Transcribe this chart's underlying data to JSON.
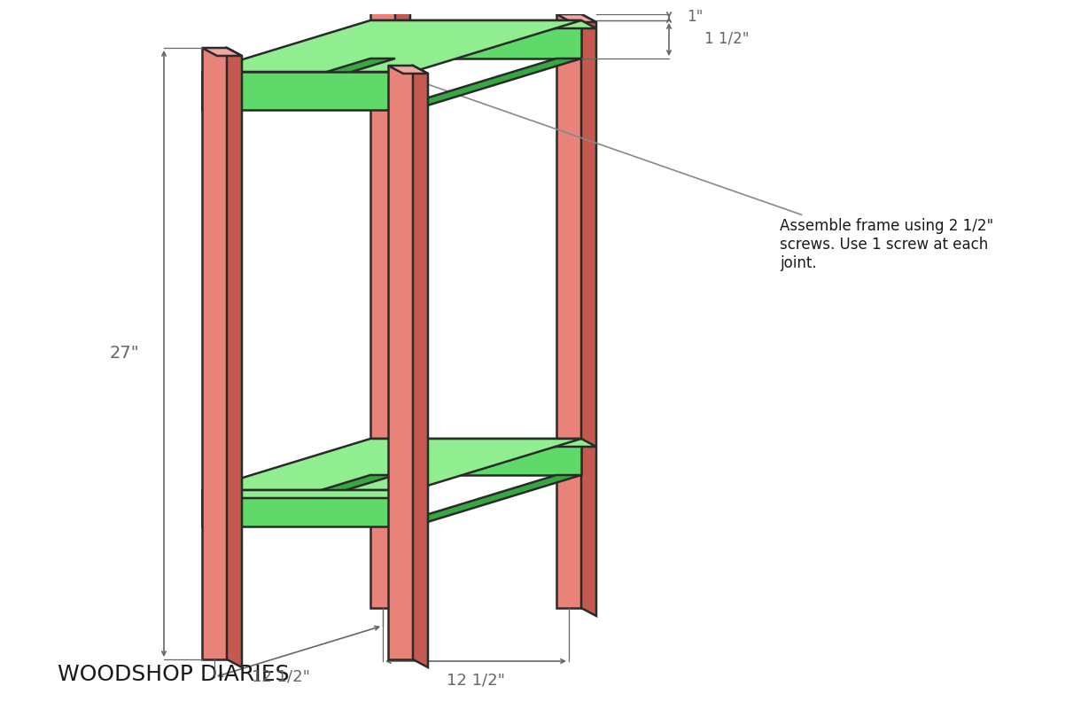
{
  "bg_color": "#FFFFFF",
  "salmon_face": "#E8837A",
  "salmon_dark": "#C4594F",
  "salmon_light": "#F0A8A0",
  "green_face": "#5ED96A",
  "green_dark": "#35A842",
  "green_top": "#90EE90",
  "outline_color": "#2A2A2A",
  "dim_color": "#666666",
  "ann_color": "#888888",
  "text_color": "#1A1A1A",
  "title": "WOODSHOP DIARIES",
  "ann_text": "Assemble frame using 2 1/2\"\nscrews. Use 1 screw at each\njoint.",
  "dim_27": "27\"",
  "dim_12a": "12 1/2\"",
  "dim_12b": "12 1/2\"",
  "dim_1": "1\"",
  "dim_1h": "1 1/2\""
}
